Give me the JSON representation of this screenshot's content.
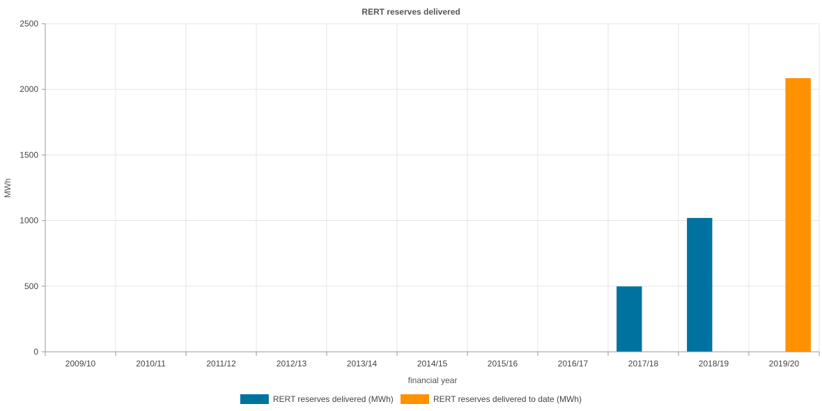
{
  "chart_data": {
    "type": "bar",
    "title": "RERT reserves delivered",
    "xlabel": "financial year",
    "ylabel": "MWh",
    "ylim": [
      0,
      2500
    ],
    "yticks": [
      0,
      500,
      1000,
      1500,
      2000,
      2500
    ],
    "grid": true,
    "legend_position": "bottom",
    "categories": [
      "2009/10",
      "2010/11",
      "2011/12",
      "2012/13",
      "2013/14",
      "2014/15",
      "2015/16",
      "2016/17",
      "2017/18",
      "2018/19",
      "2019/20"
    ],
    "series": [
      {
        "name": "RERT reserves delivered (MWh)",
        "color": "#00729f",
        "values": [
          0,
          0,
          0,
          0,
          0,
          0,
          0,
          0,
          498,
          1020,
          0
        ]
      },
      {
        "name": "RERT reserves delivered to date (MWh)",
        "color": "#ff9100",
        "values": [
          0,
          0,
          0,
          0,
          0,
          0,
          0,
          0,
          0,
          0,
          2085
        ]
      }
    ]
  }
}
